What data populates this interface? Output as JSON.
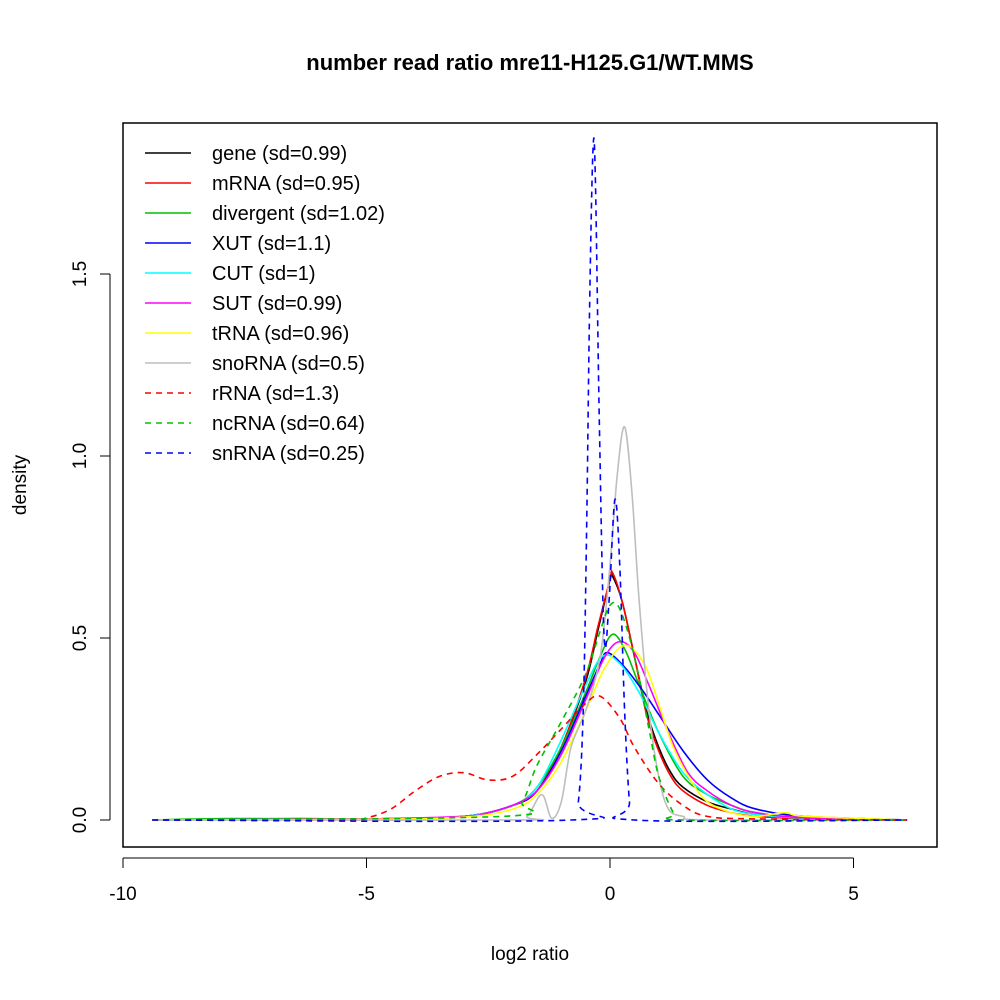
{
  "chart_data": {
    "type": "line",
    "title": "number read ratio mre11-H125.G1/WT.MMS",
    "xlabel": "log2 ratio",
    "ylabel": "density",
    "xlim": [
      -10,
      6.7
    ],
    "ylim": [
      -0.075,
      1.9
    ],
    "xticks": [
      -10,
      -5,
      0,
      5
    ],
    "yticks": [
      0.0,
      0.5,
      1.0,
      1.5
    ],
    "xtick_labels": [
      "-10",
      "-5",
      "0",
      "5"
    ],
    "ytick_labels": [
      "0.0",
      "0.5",
      "1.0",
      "1.5"
    ],
    "grid": false,
    "legend_position": "top-left",
    "series": [
      {
        "name": "gene (sd=0.99)",
        "color": "#000000",
        "dash": false,
        "points": [
          [
            -9.4,
            0
          ],
          [
            -5,
            0.003
          ],
          [
            -3,
            0.01
          ],
          [
            -2,
            0.04
          ],
          [
            -1.5,
            0.08
          ],
          [
            -1,
            0.2
          ],
          [
            -0.5,
            0.38
          ],
          [
            -0.25,
            0.52
          ],
          [
            0,
            0.66
          ],
          [
            0.05,
            0.67
          ],
          [
            0.25,
            0.6
          ],
          [
            0.5,
            0.45
          ],
          [
            0.75,
            0.3
          ],
          [
            1,
            0.2
          ],
          [
            1.25,
            0.13
          ],
          [
            1.5,
            0.09
          ],
          [
            2,
            0.05
          ],
          [
            2.5,
            0.03
          ],
          [
            3,
            0.015
          ],
          [
            4,
            0.005
          ],
          [
            6.1,
            0
          ]
        ]
      },
      {
        "name": "mRNA (sd=0.95)",
        "color": "#ff0000",
        "dash": false,
        "points": [
          [
            -9.4,
            0
          ],
          [
            -6.5,
            0.004
          ],
          [
            -5,
            0.003
          ],
          [
            -3,
            0.01
          ],
          [
            -2,
            0.04
          ],
          [
            -1.5,
            0.08
          ],
          [
            -1,
            0.2
          ],
          [
            -0.5,
            0.39
          ],
          [
            -0.25,
            0.53
          ],
          [
            0,
            0.66
          ],
          [
            0.05,
            0.68
          ],
          [
            0.25,
            0.6
          ],
          [
            0.5,
            0.45
          ],
          [
            0.75,
            0.29
          ],
          [
            1,
            0.19
          ],
          [
            1.25,
            0.12
          ],
          [
            1.5,
            0.08
          ],
          [
            2,
            0.04
          ],
          [
            2.5,
            0.02
          ],
          [
            3,
            0.01
          ],
          [
            4,
            0.004
          ],
          [
            6.1,
            0
          ]
        ]
      },
      {
        "name": "divergent (sd=1.02)",
        "color": "#00c000",
        "dash": false,
        "points": [
          [
            -9.4,
            0
          ],
          [
            -7.8,
            0.004
          ],
          [
            -5,
            0.003
          ],
          [
            -3,
            0.01
          ],
          [
            -2,
            0.04
          ],
          [
            -1.5,
            0.09
          ],
          [
            -1,
            0.2
          ],
          [
            -0.5,
            0.35
          ],
          [
            -0.2,
            0.45
          ],
          [
            0.05,
            0.51
          ],
          [
            0.3,
            0.47
          ],
          [
            0.6,
            0.37
          ],
          [
            1,
            0.24
          ],
          [
            1.5,
            0.12
          ],
          [
            2,
            0.07
          ],
          [
            2.5,
            0.04
          ],
          [
            3,
            0.02
          ],
          [
            4,
            0.006
          ],
          [
            6.1,
            0
          ]
        ]
      },
      {
        "name": "XUT (sd=1.1)",
        "color": "#0000ff",
        "dash": false,
        "points": [
          [
            -9.4,
            0
          ],
          [
            -5,
            0.002
          ],
          [
            -3,
            0.01
          ],
          [
            -2,
            0.04
          ],
          [
            -1.5,
            0.08
          ],
          [
            -1,
            0.19
          ],
          [
            -0.5,
            0.34
          ],
          [
            -0.2,
            0.43
          ],
          [
            -0.05,
            0.46
          ],
          [
            0.3,
            0.42
          ],
          [
            0.7,
            0.35
          ],
          [
            1,
            0.29
          ],
          [
            1.5,
            0.19
          ],
          [
            2,
            0.11
          ],
          [
            2.5,
            0.06
          ],
          [
            3,
            0.03
          ],
          [
            4,
            0.01
          ],
          [
            6.1,
            0
          ]
        ]
      },
      {
        "name": "CUT (sd=1)",
        "color": "#00ffff",
        "dash": false,
        "points": [
          [
            -9.4,
            0
          ],
          [
            -5,
            0.003
          ],
          [
            -3,
            0.01
          ],
          [
            -2,
            0.04
          ],
          [
            -1.5,
            0.09
          ],
          [
            -1,
            0.22
          ],
          [
            -0.5,
            0.37
          ],
          [
            -0.15,
            0.45
          ],
          [
            0.2,
            0.43
          ],
          [
            0.6,
            0.35
          ],
          [
            1,
            0.24
          ],
          [
            1.5,
            0.13
          ],
          [
            2,
            0.07
          ],
          [
            2.5,
            0.03
          ],
          [
            3,
            0.015
          ],
          [
            4,
            0.005
          ],
          [
            6.1,
            0
          ]
        ]
      },
      {
        "name": "SUT (sd=0.99)",
        "color": "#ff00ff",
        "dash": false,
        "points": [
          [
            -9.4,
            0
          ],
          [
            -5,
            0.003
          ],
          [
            -3,
            0.01
          ],
          [
            -2.5,
            0.02
          ],
          [
            -2,
            0.04
          ],
          [
            -1.5,
            0.08
          ],
          [
            -1,
            0.18
          ],
          [
            -0.5,
            0.33
          ],
          [
            -0.1,
            0.45
          ],
          [
            0.2,
            0.49
          ],
          [
            0.5,
            0.46
          ],
          [
            0.8,
            0.37
          ],
          [
            1.2,
            0.24
          ],
          [
            1.6,
            0.13
          ],
          [
            2,
            0.08
          ],
          [
            2.5,
            0.04
          ],
          [
            3,
            0.02
          ],
          [
            4,
            0.006
          ],
          [
            6.1,
            0
          ]
        ]
      },
      {
        "name": "tRNA (sd=0.96)",
        "color": "#ffff00",
        "dash": false,
        "points": [
          [
            -9.4,
            0
          ],
          [
            -5,
            0.002
          ],
          [
            -3,
            0.008
          ],
          [
            -2,
            0.03
          ],
          [
            -1.5,
            0.07
          ],
          [
            -1,
            0.16
          ],
          [
            -0.5,
            0.3
          ],
          [
            -0.1,
            0.42
          ],
          [
            0.3,
            0.48
          ],
          [
            0.7,
            0.43
          ],
          [
            1,
            0.32
          ],
          [
            1.3,
            0.2
          ],
          [
            1.7,
            0.1
          ],
          [
            2,
            0.05
          ],
          [
            2.5,
            0.02
          ],
          [
            3,
            0.01
          ],
          [
            3.6,
            0.02
          ],
          [
            4,
            0.01
          ],
          [
            6.1,
            0
          ]
        ]
      },
      {
        "name": "snoRNA (sd=0.5)",
        "color": "#bebebe",
        "dash": false,
        "points": [
          [
            -9.4,
            0
          ],
          [
            -2,
            0
          ],
          [
            -1.7,
            0.01
          ],
          [
            -1.4,
            0.07
          ],
          [
            -1.2,
            0.005
          ],
          [
            -1,
            0.05
          ],
          [
            -0.8,
            0.2
          ],
          [
            -0.5,
            0.3
          ],
          [
            -0.2,
            0.45
          ],
          [
            0,
            0.7
          ],
          [
            0.15,
            0.95
          ],
          [
            0.3,
            1.08
          ],
          [
            0.45,
            0.9
          ],
          [
            0.6,
            0.6
          ],
          [
            0.8,
            0.3
          ],
          [
            1,
            0.12
          ],
          [
            1.2,
            0.03
          ],
          [
            1.5,
            0.01
          ],
          [
            2,
            0
          ],
          [
            6.1,
            0
          ]
        ]
      },
      {
        "name": "rRNA (sd=1.3)",
        "color": "#ff0000",
        "dash": true,
        "points": [
          [
            -9.4,
            0
          ],
          [
            -5.5,
            0.001
          ],
          [
            -5,
            0.006
          ],
          [
            -4.5,
            0.03
          ],
          [
            -4,
            0.08
          ],
          [
            -3.5,
            0.12
          ],
          [
            -3,
            0.13
          ],
          [
            -2.5,
            0.11
          ],
          [
            -2,
            0.12
          ],
          [
            -1.5,
            0.18
          ],
          [
            -1,
            0.25
          ],
          [
            -0.5,
            0.32
          ],
          [
            -0.2,
            0.34
          ],
          [
            0.2,
            0.28
          ],
          [
            0.5,
            0.2
          ],
          [
            1,
            0.1
          ],
          [
            1.5,
            0.04
          ],
          [
            2,
            0.01
          ],
          [
            3,
            0.003
          ],
          [
            6.1,
            0
          ]
        ]
      },
      {
        "name": "ncRNA (sd=0.64)",
        "color": "#00c000",
        "dash": true,
        "points": [
          [
            -9.4,
            0
          ],
          [
            -2.2,
            0.01
          ],
          [
            -1.8,
            0.05
          ],
          [
            -1.5,
            0.15
          ],
          [
            -1,
            0.27
          ],
          [
            -0.5,
            0.4
          ],
          [
            -0.2,
            0.52
          ],
          [
            0,
            0.59
          ],
          [
            0.2,
            0.58
          ],
          [
            0.5,
            0.45
          ],
          [
            0.8,
            0.25
          ],
          [
            1,
            0.12
          ],
          [
            1.3,
            0.02
          ],
          [
            1.5,
            0
          ],
          [
            6.1,
            0
          ]
        ]
      },
      {
        "name": "snRNA (sd=0.25)",
        "color": "#0000ff",
        "dash": true,
        "points": [
          [
            -9.4,
            0
          ],
          [
            -0.8,
            0
          ],
          [
            -0.65,
            0.05
          ],
          [
            -0.55,
            0.3
          ],
          [
            -0.48,
            0.8
          ],
          [
            -0.42,
            1.4
          ],
          [
            -0.35,
            1.84
          ],
          [
            -0.3,
            1.76
          ],
          [
            -0.22,
            1.1
          ],
          [
            -0.12,
            0.5
          ],
          [
            -0.02,
            0.6
          ],
          [
            0.1,
            0.88
          ],
          [
            0.2,
            0.7
          ],
          [
            0.3,
            0.3
          ],
          [
            0.4,
            0.05
          ],
          [
            0.5,
            0
          ],
          [
            6.1,
            0
          ]
        ]
      }
    ]
  }
}
